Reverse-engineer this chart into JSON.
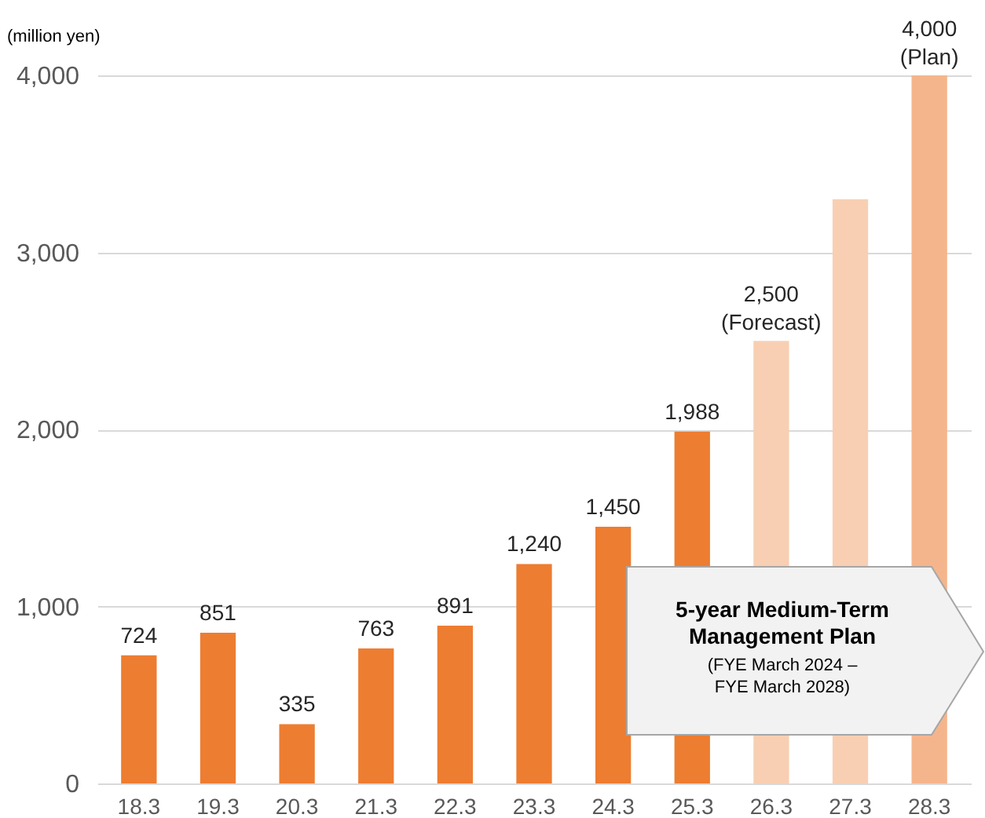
{
  "chart_data": {
    "type": "bar",
    "ylabel": "(million yen)",
    "categories": [
      "18.3",
      "19.3",
      "20.3",
      "21.3",
      "22.3",
      "23.3",
      "24.3",
      "25.3",
      "26.3",
      "27.3",
      "28.3"
    ],
    "values": [
      724,
      851,
      335,
      763,
      891,
      1240,
      1450,
      1988,
      2500,
      3300,
      4000
    ],
    "value_labels": [
      "724",
      "851",
      "335",
      "763",
      "891",
      "1,240",
      "1,450",
      "1,988",
      "2,500",
      null,
      "4,000"
    ],
    "colors": [
      "#ed7d31",
      "#ed7d31",
      "#ed7d31",
      "#ed7d31",
      "#ed7d31",
      "#ed7d31",
      "#ed7d31",
      "#ed7d31",
      "#f8cfb3",
      "#f8cfb3",
      "#f5b58c"
    ],
    "ylim": [
      0,
      4000
    ],
    "yticks": [
      0,
      {
        "value": 1000,
        "label": "1,000"
      },
      {
        "value": 2000,
        "label": "2,000"
      },
      {
        "value": 3000,
        "label": "3,000"
      },
      {
        "value": 4000,
        "label": "4,000"
      }
    ],
    "grid": "y",
    "annotations": [
      {
        "text": "(Forecast)",
        "x": "26.3",
        "y": 2500
      },
      {
        "text": "(Plan)",
        "x": "28.3",
        "y": 4000
      },
      "5-year Medium-Term Management Plan",
      "(FYE March 2024 – FYE March 2028)"
    ]
  }
}
